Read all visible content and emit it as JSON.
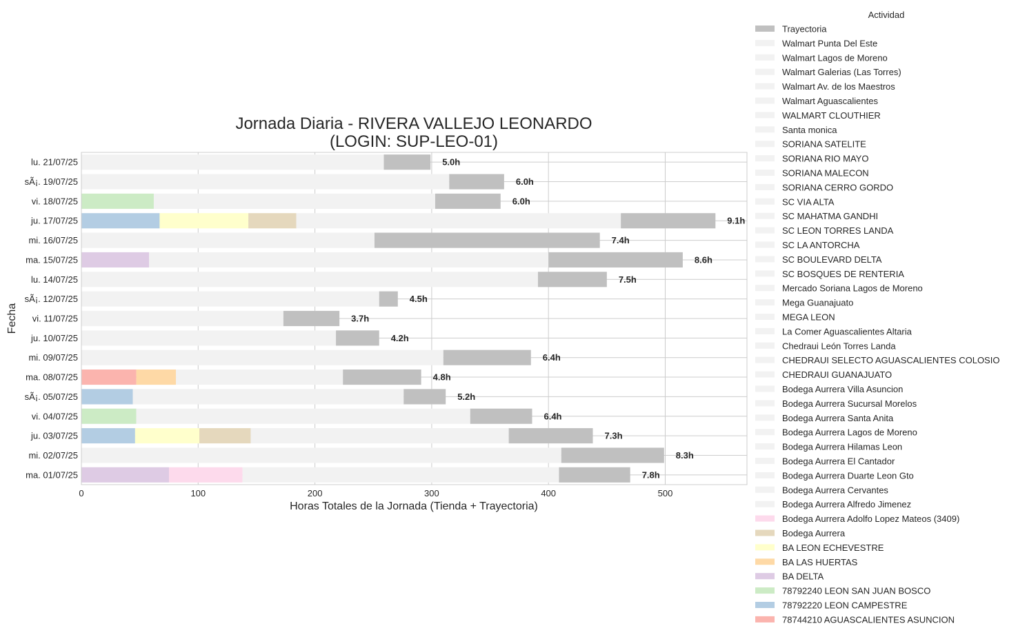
{
  "chart_data": {
    "type": "bar",
    "orientation": "horizontal",
    "stacked": true,
    "title": "Jornada Diaria - RIVERA VALLEJO LEONARDO",
    "subtitle": "(LOGIN: SUP-LEO-01)",
    "xlabel": "Horas Totales de la Jornada (Tienda + Trayectoria)",
    "ylabel": "Fecha",
    "xlim": [
      0,
      570
    ],
    "xticks": [
      0,
      100,
      200,
      300,
      400,
      500
    ],
    "grid": true,
    "legend_title": "Actividad",
    "legend_position": "outside-right",
    "categories": [
      "lu. 21/07/25",
      "sÃ¡. 19/07/25",
      "vi. 18/07/25",
      "ju. 17/07/25",
      "mi. 16/07/25",
      "ma. 15/07/25",
      "lu. 14/07/25",
      "sÃ¡. 12/07/25",
      "vi. 11/07/25",
      "ju. 10/07/25",
      "mi. 09/07/25",
      "ma. 08/07/25",
      "sÃ¡. 05/07/25",
      "vi. 04/07/25",
      "ju. 03/07/25",
      "mi. 02/07/25",
      "ma. 01/07/25"
    ],
    "bars": [
      {
        "segments": [
          {
            "a": "Walmart Punta Del Este",
            "v": 259
          },
          {
            "a": "Trayectoria",
            "v": 40
          }
        ],
        "label": "5.0h"
      },
      {
        "segments": [
          {
            "a": "Walmart Punta Del Este",
            "v": 315
          },
          {
            "a": "Trayectoria",
            "v": 47
          }
        ],
        "label": "6.0h"
      },
      {
        "segments": [
          {
            "a": "78792240 LEON SAN JUAN BOSCO",
            "v": 62
          },
          {
            "a": "Walmart Punta Del Este",
            "v": 241
          },
          {
            "a": "Trayectoria",
            "v": 56
          }
        ],
        "label": "6.0h"
      },
      {
        "segments": [
          {
            "a": "78792220 LEON CAMPESTRE",
            "v": 67
          },
          {
            "a": "BA LEON ECHEVESTRE",
            "v": 76
          },
          {
            "a": "Bodega Aurrera",
            "v": 41
          },
          {
            "a": "Walmart Punta Del Este",
            "v": 278
          },
          {
            "a": "Trayectoria",
            "v": 81
          }
        ],
        "label": "9.1h"
      },
      {
        "segments": [
          {
            "a": "Walmart Punta Del Este",
            "v": 251
          },
          {
            "a": "Trayectoria",
            "v": 193
          }
        ],
        "label": "7.4h"
      },
      {
        "segments": [
          {
            "a": "BA DELTA",
            "v": 58
          },
          {
            "a": "Walmart Punta Del Este",
            "v": 342
          },
          {
            "a": "Trayectoria",
            "v": 115
          }
        ],
        "label": "8.6h"
      },
      {
        "segments": [
          {
            "a": "Walmart Punta Del Este",
            "v": 391
          },
          {
            "a": "Trayectoria",
            "v": 59
          }
        ],
        "label": "7.5h"
      },
      {
        "segments": [
          {
            "a": "Walmart Punta Del Este",
            "v": 255
          },
          {
            "a": "Trayectoria",
            "v": 16
          }
        ],
        "label": "4.5h"
      },
      {
        "segments": [
          {
            "a": "Walmart Punta Del Este",
            "v": 173
          },
          {
            "a": "Trayectoria",
            "v": 48
          }
        ],
        "label": "3.7h"
      },
      {
        "segments": [
          {
            "a": "Walmart Punta Del Este",
            "v": 218
          },
          {
            "a": "Trayectoria",
            "v": 37
          }
        ],
        "label": "4.2h"
      },
      {
        "segments": [
          {
            "a": "Walmart Punta Del Este",
            "v": 310
          },
          {
            "a": "Trayectoria",
            "v": 75
          }
        ],
        "label": "6.4h"
      },
      {
        "segments": [
          {
            "a": "78744210 AGUASCALIENTES ASUNCION",
            "v": 47
          },
          {
            "a": "BA LAS HUERTAS",
            "v": 34
          },
          {
            "a": "Walmart Punta Del Este",
            "v": 143
          },
          {
            "a": "Trayectoria",
            "v": 67
          }
        ],
        "label": "4.8h"
      },
      {
        "segments": [
          {
            "a": "78792220 LEON CAMPESTRE",
            "v": 44
          },
          {
            "a": "Walmart Punta Del Este",
            "v": 232
          },
          {
            "a": "Trayectoria",
            "v": 36
          }
        ],
        "label": "5.2h"
      },
      {
        "segments": [
          {
            "a": "78792240 LEON SAN JUAN BOSCO",
            "v": 47
          },
          {
            "a": "Walmart Punta Del Este",
            "v": 286
          },
          {
            "a": "Trayectoria",
            "v": 53
          }
        ],
        "label": "6.4h"
      },
      {
        "segments": [
          {
            "a": "78792220 LEON CAMPESTRE",
            "v": 46
          },
          {
            "a": "BA LEON ECHEVESTRE",
            "v": 55
          },
          {
            "a": "Bodega Aurrera",
            "v": 44
          },
          {
            "a": "Walmart Punta Del Este",
            "v": 221
          },
          {
            "a": "Trayectoria",
            "v": 72
          }
        ],
        "label": "7.3h"
      },
      {
        "segments": [
          {
            "a": "Walmart Punta Del Este",
            "v": 411
          },
          {
            "a": "Trayectoria",
            "v": 88
          }
        ],
        "label": "8.3h"
      },
      {
        "segments": [
          {
            "a": "BA DELTA",
            "v": 75
          },
          {
            "a": "Bodega Aurrera Adolfo Lopez Mateos (3409)",
            "v": 63
          },
          {
            "a": "Walmart Punta Del Este",
            "v": 271
          },
          {
            "a": "Trayectoria",
            "v": 61
          }
        ],
        "label": "7.8h"
      }
    ],
    "legend": [
      {
        "name": "Trayectoria",
        "color": "#c0c0c0"
      },
      {
        "name": "Walmart Punta Del Este",
        "color": "#f2f2f2"
      },
      {
        "name": "Walmart Lagos de Moreno",
        "color": "#f2f2f2"
      },
      {
        "name": "Walmart Galerias (Las Torres)",
        "color": "#f2f2f2"
      },
      {
        "name": "Walmart Av. de los Maestros",
        "color": "#f2f2f2"
      },
      {
        "name": "Walmart Aguascalientes",
        "color": "#f2f2f2"
      },
      {
        "name": "WALMART CLOUTHIER",
        "color": "#f2f2f2"
      },
      {
        "name": "Santa monica",
        "color": "#f2f2f2"
      },
      {
        "name": "SORIANA SATELITE",
        "color": "#f2f2f2"
      },
      {
        "name": "SORIANA RIO MAYO",
        "color": "#f2f2f2"
      },
      {
        "name": "SORIANA MALECON",
        "color": "#f2f2f2"
      },
      {
        "name": "SORIANA CERRO GORDO",
        "color": "#f2f2f2"
      },
      {
        "name": "SC VIA ALTA",
        "color": "#f2f2f2"
      },
      {
        "name": "SC MAHATMA GANDHI",
        "color": "#f2f2f2"
      },
      {
        "name": "SC LEON TORRES LANDA",
        "color": "#f2f2f2"
      },
      {
        "name": "SC LA ANTORCHA",
        "color": "#f2f2f2"
      },
      {
        "name": "SC BOULEVARD DELTA",
        "color": "#f2f2f2"
      },
      {
        "name": "SC BOSQUES DE RENTERIA",
        "color": "#f2f2f2"
      },
      {
        "name": "Mercado Soriana Lagos de Moreno",
        "color": "#f2f2f2"
      },
      {
        "name": "Mega Guanajuato",
        "color": "#f2f2f2"
      },
      {
        "name": "MEGA LEON",
        "color": "#f2f2f2"
      },
      {
        "name": "La Comer Aguascalientes Altaria",
        "color": "#f2f2f2"
      },
      {
        "name": "Chedraui León Torres Landa",
        "color": "#f2f2f2"
      },
      {
        "name": "CHEDRAUI SELECTO AGUASCALIENTES  COLOSIO",
        "color": "#f2f2f2"
      },
      {
        "name": "CHEDRAUI  GUANAJUATO",
        "color": "#f2f2f2"
      },
      {
        "name": "Bodega Aurrera Villa Asuncion",
        "color": "#f2f2f2"
      },
      {
        "name": "Bodega Aurrera Sucursal Morelos",
        "color": "#f2f2f2"
      },
      {
        "name": "Bodega Aurrera Santa Anita",
        "color": "#f2f2f2"
      },
      {
        "name": "Bodega Aurrera Lagos de Moreno",
        "color": "#f2f2f2"
      },
      {
        "name": "Bodega Aurrera Hilamas Leon",
        "color": "#f2f2f2"
      },
      {
        "name": "Bodega Aurrera El Cantador",
        "color": "#f2f2f2"
      },
      {
        "name": "Bodega Aurrera Duarte Leon Gto",
        "color": "#f2f2f2"
      },
      {
        "name": "Bodega Aurrera Cervantes",
        "color": "#f2f2f2"
      },
      {
        "name": "Bodega Aurrera Alfredo Jimenez",
        "color": "#f2f2f2"
      },
      {
        "name": "Bodega Aurrera Adolfo Lopez Mateos (3409)",
        "color": "#fddaec"
      },
      {
        "name": "Bodega Aurrera",
        "color": "#e5d8bd"
      },
      {
        "name": "BA LEON ECHEVESTRE",
        "color": "#ffffcc"
      },
      {
        "name": "BA LAS HUERTAS",
        "color": "#fed9a6"
      },
      {
        "name": "BA DELTA",
        "color": "#decbe4"
      },
      {
        "name": "78792240 LEON SAN JUAN BOSCO",
        "color": "#ccebc5"
      },
      {
        "name": "78792220 LEON CAMPESTRE",
        "color": "#b3cde3"
      },
      {
        "name": "78744210 AGUASCALIENTES ASUNCION",
        "color": "#fbb4ae"
      }
    ]
  }
}
